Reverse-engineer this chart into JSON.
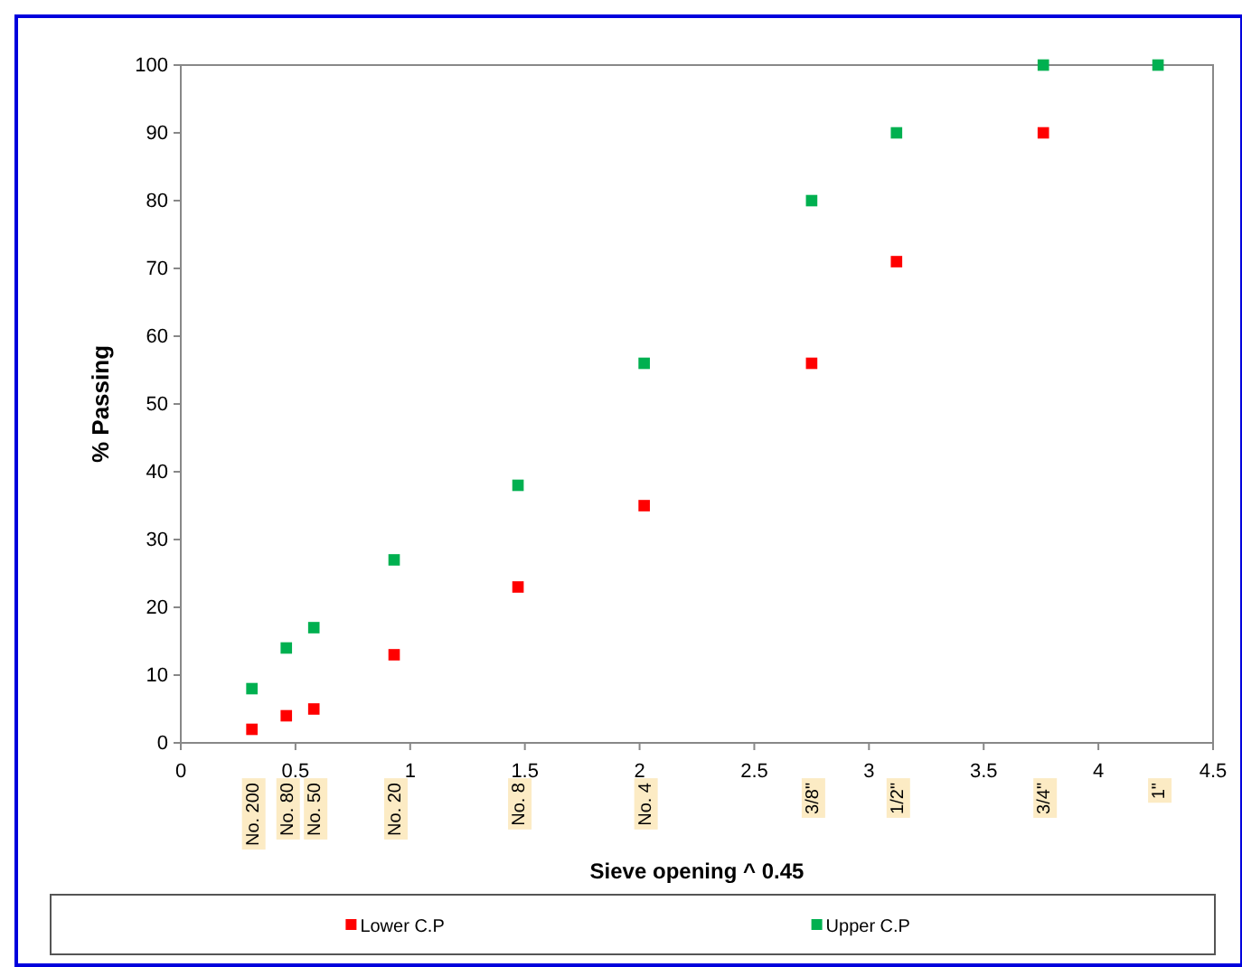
{
  "chart_data": {
    "type": "scatter",
    "xlabel": "Sieve opening ^ 0.45",
    "ylabel": "% Passing",
    "xlim": [
      0,
      4.5
    ],
    "xticks": [
      0,
      0.5,
      1,
      1.5,
      2,
      2.5,
      3,
      3.5,
      4,
      4.5
    ],
    "ylim": [
      0,
      100
    ],
    "yticks": [
      0,
      10,
      20,
      30,
      40,
      50,
      60,
      70,
      80,
      90,
      100
    ],
    "grid": false,
    "legend": "bottom",
    "marker": "square",
    "series": [
      {
        "name": "Lower C.P",
        "color": "#ff0000",
        "x": [
          0.31,
          0.46,
          0.58,
          0.93,
          1.47,
          2.02,
          2.75,
          3.12,
          3.76
        ],
        "values": [
          2,
          4,
          5,
          13,
          23,
          35,
          56,
          71,
          90
        ]
      },
      {
        "name": "Upper C.P",
        "color": "#00b050",
        "x": [
          0.31,
          0.46,
          0.58,
          0.93,
          1.47,
          2.02,
          2.75,
          3.12,
          3.76,
          4.26
        ],
        "values": [
          8,
          14,
          17,
          27,
          38,
          56,
          80,
          90,
          100,
          100
        ]
      }
    ],
    "annotations": [
      "No. 200",
      "No. 80",
      "No. 50",
      "No. 20",
      "No. 8",
      "No. 4",
      "3/8\"",
      "1/2\"",
      "3/4\"",
      "1\""
    ]
  }
}
